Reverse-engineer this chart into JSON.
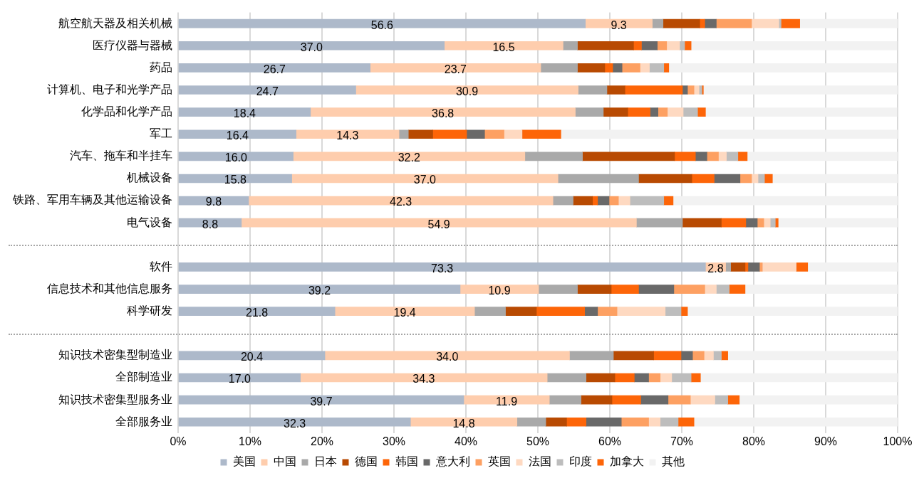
{
  "chart_data": {
    "type": "bar",
    "orientation": "horizontal",
    "stacked": true,
    "categories": [
      "航空航天器及相关机械",
      "医疗仪器与器械",
      "药品",
      "计算机、电子和光学产品",
      "化学品和化学产品",
      "军工",
      "汽车、拖车和半挂车",
      "机械设备",
      "铁路、军用车辆及其他运输设备",
      "电气设备",
      null,
      "软件",
      "信息技术和其他信息服务",
      "科学研发",
      null,
      "知识技术密集型制造业",
      "全部制造业",
      "知识技术密集型服务业",
      "全部服务业"
    ],
    "series": [
      {
        "name": "美国",
        "color": "#adb9ca",
        "values": [
          56.6,
          37.0,
          26.7,
          24.7,
          18.4,
          16.4,
          16.0,
          15.8,
          9.8,
          8.8,
          null,
          73.3,
          39.2,
          21.8,
          null,
          20.4,
          17.0,
          39.7,
          32.3
        ],
        "value_labels": [
          "56.6",
          "37.0",
          "26.7",
          "24.7",
          "18.4",
          "16.4",
          "16.0",
          "15.8",
          "9.8",
          "8.8",
          null,
          "73.3",
          "39.2",
          "21.8",
          null,
          "20.4",
          "17.0",
          "39.7",
          "32.3"
        ]
      },
      {
        "name": "中国",
        "color": "#fecdad",
        "values": [
          9.3,
          16.5,
          23.7,
          30.9,
          36.8,
          14.3,
          32.2,
          37.0,
          42.3,
          54.9,
          null,
          2.8,
          10.9,
          19.4,
          null,
          34.0,
          34.3,
          11.9,
          14.8
        ],
        "value_labels": [
          "9.3",
          "16.5",
          "23.7",
          "30.9",
          "36.8",
          "14.3",
          "32.2",
          "37.0",
          "42.3",
          "54.9",
          null,
          "2.8",
          "10.9",
          "19.4",
          null,
          "34.0",
          "34.3",
          "11.9",
          "14.8"
        ]
      },
      {
        "name": "日本",
        "color": "#a9a9a9",
        "values": [
          1.5,
          2.0,
          5.1,
          4.0,
          3.9,
          1.3,
          8.0,
          11.2,
          2.8,
          6.4,
          null,
          0.7,
          5.4,
          4.3,
          null,
          6.1,
          5.4,
          4.4,
          4.0
        ]
      },
      {
        "name": "德国",
        "color": "#b84a02",
        "values": [
          5.1,
          7.8,
          3.8,
          2.5,
          3.4,
          3.4,
          12.8,
          7.4,
          2.7,
          5.4,
          null,
          2.0,
          4.7,
          4.3,
          null,
          5.6,
          4.0,
          4.3,
          2.9
        ]
      },
      {
        "name": "韩国",
        "color": "#fd6508",
        "values": [
          0.7,
          1.1,
          1.1,
          8.0,
          3.1,
          4.7,
          2.9,
          3.1,
          0.7,
          3.4,
          null,
          0.4,
          3.8,
          6.7,
          null,
          3.8,
          2.7,
          4.0,
          2.7
        ]
      },
      {
        "name": "意大利",
        "color": "#696969",
        "values": [
          1.6,
          2.2,
          1.3,
          0.7,
          1.1,
          2.5,
          1.6,
          3.6,
          1.6,
          1.6,
          null,
          1.6,
          4.9,
          1.8,
          null,
          1.6,
          2.0,
          3.8,
          4.9
        ]
      },
      {
        "name": "英国",
        "color": "#fda062",
        "values": [
          4.9,
          1.3,
          2.5,
          0.9,
          1.3,
          2.7,
          1.6,
          1.6,
          1.3,
          0.9,
          null,
          0.4,
          4.3,
          2.7,
          null,
          1.6,
          1.6,
          3.1,
          3.8
        ]
      },
      {
        "name": "法国",
        "color": "#fed9c1",
        "values": [
          3.8,
          1.8,
          1.3,
          0.7,
          2.2,
          2.5,
          1.1,
          0.9,
          1.6,
          0.9,
          null,
          4.7,
          1.6,
          6.7,
          null,
          1.3,
          1.6,
          3.4,
          1.6
        ]
      },
      {
        "name": "印度",
        "color": "#bdbdbd",
        "values": [
          0.3,
          0.7,
          2.0,
          0.4,
          2.0,
          0,
          1.6,
          0.9,
          4.7,
          0.7,
          null,
          0,
          1.8,
          2.2,
          null,
          1.1,
          2.7,
          1.8,
          2.5
        ]
      },
      {
        "name": "加拿大",
        "color": "#fd6508",
        "values": [
          2.6,
          0.9,
          0.7,
          0.2,
          1.1,
          5.4,
          1.3,
          1.1,
          1.3,
          0.4,
          null,
          1.6,
          2.2,
          0.9,
          null,
          0.9,
          1.3,
          1.6,
          2.2
        ]
      },
      {
        "name": "其他",
        "color": "#f2f2f2",
        "values": [
          13.6,
          28.6,
          31.7,
          27.0,
          26.6,
          46.9,
          21.0,
          17.4,
          31.3,
          16.7,
          null,
          12.5,
          21.2,
          29.3,
          null,
          23.7,
          27.5,
          22.1,
          28.4
        ]
      }
    ],
    "xlim": [
      0,
      100
    ],
    "xticks": [
      {
        "value": 0,
        "label": "0%"
      },
      {
        "value": 10,
        "label": "10%"
      },
      {
        "value": 20,
        "label": "20%"
      },
      {
        "value": 30,
        "label": "30%"
      },
      {
        "value": 40,
        "label": "40%"
      },
      {
        "value": 50,
        "label": "50%"
      },
      {
        "value": 60,
        "label": "60%"
      },
      {
        "value": 70,
        "label": "70%"
      },
      {
        "value": 80,
        "label": "80%"
      },
      {
        "value": 90,
        "label": "90%"
      },
      {
        "value": 100,
        "label": "100%"
      }
    ],
    "grid": "x",
    "legend": "bottom"
  }
}
